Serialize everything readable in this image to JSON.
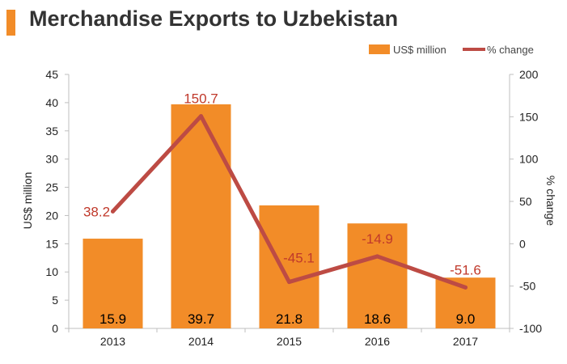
{
  "title": "Merchandise Exports to Uzbekistan",
  "colors": {
    "bar": "#f28c28",
    "line": "#bd4b44",
    "line_label": "#c0392b",
    "accent": "#f28c28"
  },
  "chart_data": {
    "type": "bar",
    "title": "Merchandise Exports to Uzbekistan",
    "categories": [
      "2013",
      "2014",
      "2015",
      "2016",
      "2017"
    ],
    "series": [
      {
        "name": "US$ million",
        "type": "bar",
        "axis": "left",
        "values": [
          15.9,
          39.7,
          21.8,
          18.6,
          9.0
        ],
        "labels": [
          "15.9",
          "39.7",
          "21.8",
          "18.6",
          "9.0"
        ]
      },
      {
        "name": "% change",
        "type": "line",
        "axis": "right",
        "values": [
          38.2,
          150.7,
          -45.1,
          -14.9,
          -51.6
        ],
        "labels": [
          "38.2",
          "150.7",
          "-45.1",
          "-14.9",
          "-51.6"
        ]
      }
    ],
    "ylabel": "US$ million",
    "y2label": "% change",
    "ylim": [
      0,
      45
    ],
    "y2lim": [
      -100,
      200
    ],
    "yticks": [
      "0",
      "5",
      "10",
      "15",
      "20",
      "25",
      "30",
      "35",
      "40",
      "45"
    ],
    "y2ticks": [
      "-100",
      "-50",
      "0",
      "50",
      "100",
      "150",
      "200"
    ],
    "legend_position": "top-right",
    "grid": false
  }
}
